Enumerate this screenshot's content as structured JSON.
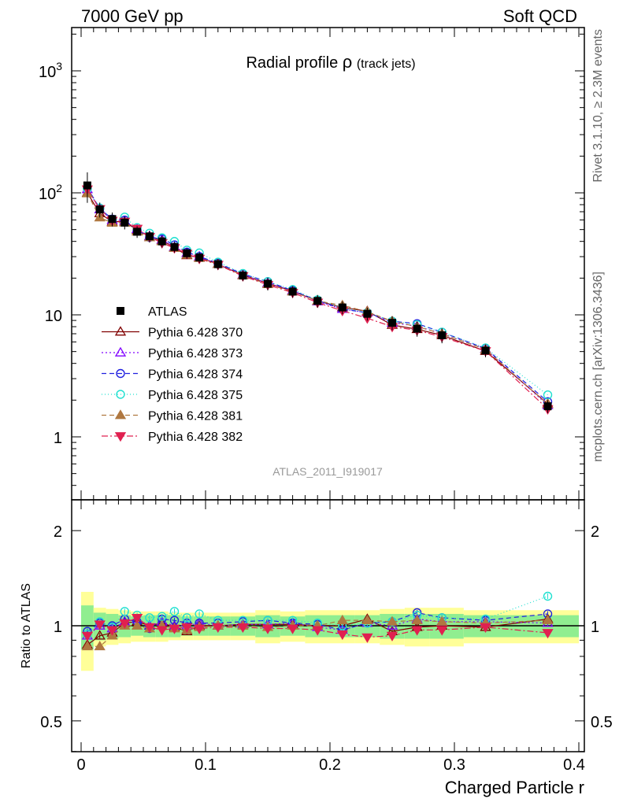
{
  "header": {
    "left": "7000 GeV pp",
    "right": "Soft QCD"
  },
  "side": {
    "top": "Rivet 3.1.10, ≥ 2.3M events",
    "bottom": "mcplots.cern.ch [arXiv:1306.3436]"
  },
  "chart_data": {
    "type": "line",
    "title": "Radial profile",
    "title_symbol": "ρ",
    "title_suffix": "(track jets)",
    "analysis_label": "ATLAS_2011_I919017",
    "xlabel": "Charged Particle r",
    "ratio_ylabel": "Ratio to ATLAS",
    "xlim": [
      -0.01,
      0.4
    ],
    "ylim": [
      0.3,
      2300
    ],
    "ratio_ylim": [
      0.34,
      2.5
    ],
    "log_y": true,
    "x_ticks": [
      "0",
      "0.1",
      "0.2",
      "0.3",
      "0.4"
    ],
    "y_ticks": [
      "1",
      "10",
      "10^2",
      "10^3"
    ],
    "ratio_ticks": [
      "0.5",
      "1",
      "2"
    ],
    "legend_position": "lower-left",
    "colors": {
      "band_inner": "#90ee90",
      "band_outer": "#ffff99"
    },
    "x": [
      0.005,
      0.015,
      0.025,
      0.035,
      0.045,
      0.055,
      0.065,
      0.075,
      0.085,
      0.095,
      0.11,
      0.13,
      0.15,
      0.17,
      0.19,
      0.21,
      0.23,
      0.25,
      0.27,
      0.29,
      0.325,
      0.375
    ],
    "data": {
      "name": "ATLAS",
      "values": [
        115,
        73,
        61,
        57,
        48,
        44,
        40,
        36,
        32,
        29.5,
        26,
        21,
        18,
        15.5,
        13,
        11.5,
        10.2,
        8.6,
        7.7,
        6.8,
        5.1,
        1.78
      ],
      "stat_rel": [
        0.16,
        0.1,
        0.09,
        0.08,
        0.07,
        0.08,
        0.08,
        0.08,
        0.07,
        0.07,
        0.07,
        0.07,
        0.08,
        0.07,
        0.08,
        0.08,
        0.08,
        0.09,
        0.09,
        0.09,
        0.08,
        0.08
      ],
      "tot_rel": [
        0.28,
        0.14,
        0.13,
        0.12,
        0.11,
        0.11,
        0.11,
        0.1,
        0.1,
        0.1,
        0.1,
        0.1,
        0.12,
        0.11,
        0.12,
        0.12,
        0.12,
        0.13,
        0.14,
        0.14,
        0.12,
        0.12
      ]
    },
    "series": [
      {
        "name": "Pythia 6.428 370",
        "color": "#800000",
        "dash": "",
        "marker": "tri-up-open",
        "ratio": [
          0.87,
          0.93,
          0.95,
          1.02,
          1.03,
          1.0,
          1.02,
          0.99,
          0.96,
          1.0,
          1.0,
          1.01,
          1.01,
          1.01,
          1.0,
          1.0,
          1.05,
          0.96,
          0.99,
          1.0,
          0.99,
          1.05
        ]
      },
      {
        "name": "Pythia 6.428 373",
        "color": "#8000ff",
        "dash": "2,3",
        "marker": "tri-up-open",
        "ratio": [
          0.93,
          1.0,
          0.98,
          1.03,
          1.05,
          1.0,
          1.03,
          1.0,
          1.0,
          1.02,
          1.0,
          1.01,
          1.01,
          1.02,
          0.99,
          0.97,
          1.02,
          1.0,
          1.05,
          1.03,
          1.03,
          1.02
        ]
      },
      {
        "name": "Pythia 6.428 374",
        "color": "#2020e0",
        "dash": "6,4",
        "marker": "circle-open",
        "ratio": [
          0.96,
          1.02,
          1.0,
          1.05,
          1.03,
          0.98,
          1.05,
          1.04,
          1.02,
          1.02,
          1.02,
          1.03,
          1.04,
          1.02,
          1.01,
          0.97,
          1.02,
          1.03,
          1.1,
          1.06,
          1.04,
          1.09
        ]
      },
      {
        "name": "Pythia 6.428 375",
        "color": "#20e0d0",
        "dash": "1,3",
        "marker": "circle-open",
        "ratio": [
          0.94,
          1.03,
          0.99,
          1.11,
          1.08,
          1.06,
          1.07,
          1.11,
          1.06,
          1.09,
          1.04,
          1.04,
          1.04,
          1.04,
          1.02,
          1.0,
          1.02,
          1.03,
          1.08,
          1.06,
          1.05,
          1.24
        ]
      },
      {
        "name": "Pythia 6.428 381",
        "color": "#b07840",
        "dash": "6,4",
        "marker": "tri-up-filled",
        "ratio": [
          0.86,
          0.86,
          0.93,
          1.0,
          1.0,
          0.98,
          1.0,
          0.98,
          0.97,
          0.99,
          1.0,
          1.0,
          0.99,
          1.0,
          1.0,
          1.04,
          1.04,
          1.03,
          1.04,
          1.03,
          1.02,
          1.04
        ]
      },
      {
        "name": "Pythia 6.428 382",
        "color": "#e02050",
        "dash": "8,3,2,3",
        "marker": "tri-down-filled",
        "ratio": [
          0.93,
          1.01,
          0.97,
          1.02,
          1.06,
          0.99,
          0.97,
          0.98,
          0.99,
          0.98,
          0.99,
          0.99,
          0.98,
          0.98,
          0.97,
          0.94,
          0.92,
          0.93,
          0.97,
          0.97,
          0.99,
          0.95
        ]
      }
    ]
  }
}
